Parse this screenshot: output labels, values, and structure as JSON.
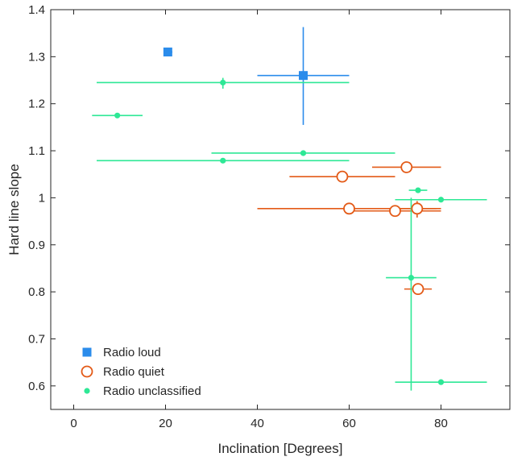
{
  "chart_data": {
    "type": "scatter",
    "title": "",
    "xlabel": "Inclination [Degrees]",
    "ylabel": "Hard line slope",
    "xlim": [
      -5,
      95
    ],
    "ylim": [
      0.55,
      1.4
    ],
    "xticks": [
      0,
      20,
      40,
      60,
      80
    ],
    "yticks": [
      0.6,
      0.7,
      0.8,
      0.9,
      1,
      1.1,
      1.2,
      1.3,
      1.4
    ],
    "xtick_labels": [
      "0",
      "20",
      "40",
      "60",
      "80"
    ],
    "ytick_labels": [
      "0.6",
      "0.7",
      "0.8",
      "0.9",
      "1",
      "1.1",
      "1.2",
      "1.3",
      "1.4"
    ],
    "grid": false,
    "legend_position": "bottom-left",
    "series": [
      {
        "name": "Radio loud",
        "color": "#2b8ceb",
        "marker": "square",
        "points": [
          {
            "x": 20.5,
            "y": 1.31,
            "xerr": [
              20.0,
              21.5
            ],
            "yerr": [
              1.305,
              1.314
            ]
          },
          {
            "x": 50,
            "y": 1.26,
            "xerr": [
              40,
              60
            ],
            "yerr": [
              1.155,
              1.363
            ]
          }
        ]
      },
      {
        "name": "Radio quiet",
        "color": "#e35a17",
        "marker": "open-circle",
        "points": [
          {
            "x": 58.5,
            "y": 1.045,
            "xerr": [
              47,
              70
            ],
            "yerr": [
              1.035,
              1.055
            ]
          },
          {
            "x": 72.5,
            "y": 1.065,
            "xerr": [
              65,
              80
            ],
            "yerr": [
              1.06,
              1.07
            ]
          },
          {
            "x": 60,
            "y": 0.977,
            "xerr": [
              40,
              80
            ],
            "yerr": [
              0.972,
              0.982
            ]
          },
          {
            "x": 70,
            "y": 0.972,
            "xerr": [
              60,
              80
            ],
            "yerr": [
              0.967,
              0.977
            ]
          },
          {
            "x": 74.8,
            "y": 0.977,
            "xerr": [
              70,
              79
            ],
            "yerr": [
              0.958,
              0.993
            ]
          },
          {
            "x": 75,
            "y": 0.806,
            "xerr": [
              72,
              78
            ],
            "yerr": [
              0.797,
              0.815
            ]
          }
        ]
      },
      {
        "name": "Radio unclassified",
        "color": "#2ee896",
        "marker": "dot",
        "points": [
          {
            "x": 32.5,
            "y": 1.245,
            "xerr": [
              5,
              60
            ],
            "yerr": [
              1.232,
              1.255
            ]
          },
          {
            "x": 9.5,
            "y": 1.175,
            "xerr": [
              4,
              15
            ],
            "yerr": [
              1.173,
              1.177
            ]
          },
          {
            "x": 50,
            "y": 1.095,
            "xerr": [
              30,
              70
            ],
            "yerr": [
              1.093,
              1.097
            ]
          },
          {
            "x": 32.5,
            "y": 1.079,
            "xerr": [
              5,
              60
            ],
            "yerr": [
              1.077,
              1.081
            ]
          },
          {
            "x": 75,
            "y": 1.016,
            "xerr": [
              73,
              77
            ],
            "yerr": [
              1.012,
              1.02
            ]
          },
          {
            "x": 80,
            "y": 0.996,
            "xerr": [
              70,
              90
            ],
            "yerr": [
              0.993,
              0.999
            ]
          },
          {
            "x": 73.5,
            "y": 0.83,
            "xerr": [
              68,
              79
            ],
            "yerr": [
              0.59,
              1.0
            ]
          },
          {
            "x": 80,
            "y": 0.608,
            "xerr": [
              70,
              90
            ],
            "yerr": [
              0.606,
              0.61
            ]
          }
        ]
      }
    ]
  }
}
